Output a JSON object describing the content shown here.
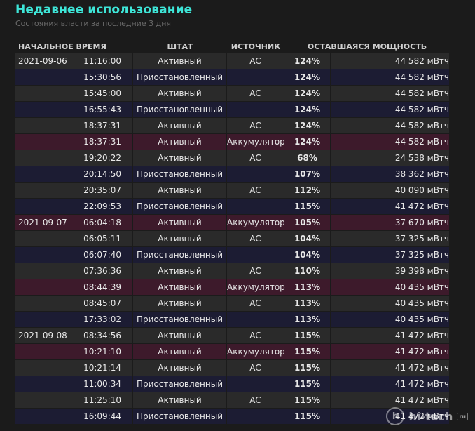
{
  "header": {
    "title": "Недавнее использование",
    "subtitle": "Состояния власти за последние 3 дня"
  },
  "columns": [
    "НАЧАЛЬНОЕ ВРЕМЯ",
    "ШТАТ",
    "ИСТОЧНИК",
    "ОСТАВШАЯСЯ МОЩНОСТЬ"
  ],
  "colors": {
    "title": "#3ee6d8",
    "row_active": "#2a2a2a",
    "row_suspended": "#1c1c33",
    "row_battery": "#3d1a2b"
  },
  "rows": [
    {
      "date": "2021-09-06",
      "time": "11:16:00",
      "state": "Активный",
      "source": "AC",
      "percent": "124%",
      "capacity": "44 582 мВтч",
      "kind": "active"
    },
    {
      "date": "",
      "time": "15:30:56",
      "state": "Приостановленный",
      "source": "",
      "percent": "124%",
      "capacity": "44 582 мВтч",
      "kind": "suspend"
    },
    {
      "date": "",
      "time": "15:45:00",
      "state": "Активный",
      "source": "AC",
      "percent": "124%",
      "capacity": "44 582 мВтч",
      "kind": "active"
    },
    {
      "date": "",
      "time": "16:55:43",
      "state": "Приостановленный",
      "source": "",
      "percent": "124%",
      "capacity": "44 582 мВтч",
      "kind": "suspend"
    },
    {
      "date": "",
      "time": "18:37:31",
      "state": "Активный",
      "source": "AC",
      "percent": "124%",
      "capacity": "44 582 мВтч",
      "kind": "active"
    },
    {
      "date": "",
      "time": "18:37:31",
      "state": "Активный",
      "source": "Аккумулятор",
      "percent": "124%",
      "capacity": "44 582 мВтч",
      "kind": "battery"
    },
    {
      "date": "",
      "time": "19:20:22",
      "state": "Активный",
      "source": "AC",
      "percent": "68%",
      "capacity": "24 538 мВтч",
      "kind": "active"
    },
    {
      "date": "",
      "time": "20:14:50",
      "state": "Приостановленный",
      "source": "",
      "percent": "107%",
      "capacity": "38 362 мВтч",
      "kind": "suspend"
    },
    {
      "date": "",
      "time": "20:35:07",
      "state": "Активный",
      "source": "AC",
      "percent": "112%",
      "capacity": "40 090 мВтч",
      "kind": "active"
    },
    {
      "date": "",
      "time": "22:09:53",
      "state": "Приостановленный",
      "source": "",
      "percent": "115%",
      "capacity": "41 472 мВтч",
      "kind": "suspend"
    },
    {
      "date": "2021-09-07",
      "time": "06:04:18",
      "state": "Активный",
      "source": "Аккумулятор",
      "percent": "105%",
      "capacity": "37 670 мВтч",
      "kind": "battery"
    },
    {
      "date": "",
      "time": "06:05:11",
      "state": "Активный",
      "source": "AC",
      "percent": "104%",
      "capacity": "37 325 мВтч",
      "kind": "active"
    },
    {
      "date": "",
      "time": "06:07:40",
      "state": "Приостановленный",
      "source": "",
      "percent": "104%",
      "capacity": "37 325 мВтч",
      "kind": "suspend"
    },
    {
      "date": "",
      "time": "07:36:36",
      "state": "Активный",
      "source": "AC",
      "percent": "110%",
      "capacity": "39 398 мВтч",
      "kind": "active"
    },
    {
      "date": "",
      "time": "08:44:39",
      "state": "Активный",
      "source": "Аккумулятор",
      "percent": "113%",
      "capacity": "40 435 мВтч",
      "kind": "battery"
    },
    {
      "date": "",
      "time": "08:45:07",
      "state": "Активный",
      "source": "AC",
      "percent": "113%",
      "capacity": "40 435 мВтч",
      "kind": "active"
    },
    {
      "date": "",
      "time": "17:33:02",
      "state": "Приостановленный",
      "source": "",
      "percent": "113%",
      "capacity": "40 435 мВтч",
      "kind": "suspend"
    },
    {
      "date": "2021-09-08",
      "time": "08:34:56",
      "state": "Активный",
      "source": "AC",
      "percent": "115%",
      "capacity": "41 472 мВтч",
      "kind": "active"
    },
    {
      "date": "",
      "time": "10:21:10",
      "state": "Активный",
      "source": "Аккумулятор",
      "percent": "115%",
      "capacity": "41 472 мВтч",
      "kind": "battery"
    },
    {
      "date": "",
      "time": "10:21:14",
      "state": "Активный",
      "source": "AC",
      "percent": "115%",
      "capacity": "41 472 мВтч",
      "kind": "active"
    },
    {
      "date": "",
      "time": "11:00:34",
      "state": "Приостановленный",
      "source": "",
      "percent": "115%",
      "capacity": "41 472 мВтч",
      "kind": "suspend"
    },
    {
      "date": "",
      "time": "11:25:10",
      "state": "Активный",
      "source": "AC",
      "percent": "115%",
      "capacity": "41 472 мВтч",
      "kind": "active"
    },
    {
      "date": "",
      "time": "16:09:44",
      "state": "Приостановленный",
      "source": "",
      "percent": "115%",
      "capacity": "41 472 мВтч",
      "kind": "suspend"
    }
  ],
  "watermark": {
    "icon": "hi-tech-logo-icon",
    "text": "hi-tech",
    "badge": "ru"
  }
}
